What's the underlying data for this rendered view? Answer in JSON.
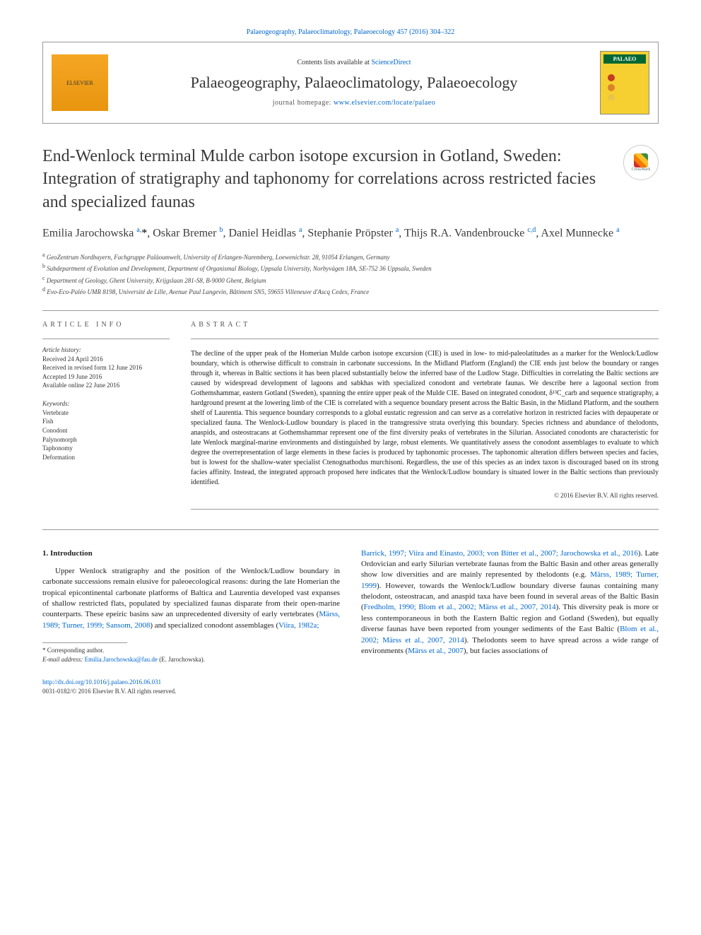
{
  "header": {
    "citation": "Palaeogeography, Palaeoclimatology, Palaeoecology 457 (2016) 304–322",
    "contents_prefix": "Contents lists available at ",
    "contents_link": "ScienceDirect",
    "journal_name": "Palaeogeography, Palaeoclimatology, Palaeoecology",
    "homepage_prefix": "journal homepage: ",
    "homepage_url": "www.elsevier.com/locate/palaeo",
    "elsevier_label": "ELSEVIER",
    "palaeo_cover_label": "PALAEO"
  },
  "crossmark_label": "CrossMark",
  "title": "End-Wenlock terminal Mulde carbon isotope excursion in Gotland, Sweden: Integration of stratigraphy and taphonomy for correlations across restricted facies and specialized faunas",
  "authors_html": "Emilia Jarochowska <sup>a,</sup><span class='asterisk'>*</span>, Oskar Bremer <sup>b</sup>, Daniel Heidlas <sup>a</sup>, Stephanie Pröpster <sup>a</sup>, Thijs R.A. Vandenbroucke <sup>c,d</sup>, Axel Munnecke <sup>a</sup>",
  "affiliations": [
    "a  GeoZentrum Nordbayern, Fachgruppe Paläoumwelt, University of Erlangen-Nuremberg, Loewenichstr. 28, 91054 Erlangen, Germany",
    "b  Subdepartment of Evolution and Development, Department of Organismal Biology, Uppsala University, Norbyvägen 18A, SE-752 36 Uppsala, Sweden",
    "c  Department of Geology, Ghent University, Krijgslaan 281-S8, B-9000 Ghent, Belgium",
    "d  Evo-Eco-Paléo UMR 8198, Université de Lille, Avenue Paul Langevin, Bâtiment SN5, 59655 Villeneuve d'Ascq Cedex, France"
  ],
  "article_info_label": "ARTICLE INFO",
  "abstract_label": "ABSTRACT",
  "history": {
    "label": "Article history:",
    "items": [
      "Received 24 April 2016",
      "Received in revised form 12 June 2016",
      "Accepted 19 June 2016",
      "Available online 22 June 2016"
    ]
  },
  "keywords": {
    "label": "Keywords:",
    "items": [
      "Vertebrate",
      "Fish",
      "Conodont",
      "Palynomorph",
      "Taphonomy",
      "Deformation"
    ]
  },
  "abstract_text": "The decline of the upper peak of the Homerian Mulde carbon isotope excursion (CIE) is used in low- to mid-paleolatitudes as a marker for the Wenlock/Ludlow boundary, which is otherwise difficult to constrain in carbonate successions. In the Midland Platform (England) the CIE ends just below the boundary or ranges through it, whereas in Baltic sections it has been placed substantially below the inferred base of the Ludlow Stage. Difficulties in correlating the Baltic sections are caused by widespread development of lagoons and sabkhas with specialized conodont and vertebrate faunas. We describe here a lagoonal section from Gothemshammar, eastern Gotland (Sweden), spanning the entire upper peak of the Mulde CIE. Based on integrated conodont, δ¹³C_carb and sequence stratigraphy, a hardground present at the lowering limb of the CIE is correlated with a sequence boundary present across the Baltic Basin, in the Midland Platform, and the southern shelf of Laurentia. This sequence boundary corresponds to a global eustatic regression and can serve as a correlative horizon in restricted facies with depauperate or specialized fauna. The Wenlock-Ludlow boundary is placed in the transgressive strata overlying this boundary. Species richness and abundance of thelodonts, anaspids, and osteostracans at Gothemshammar represent one of the first diversity peaks of vertebrates in the Silurian. Associated conodonts are characteristic for late Wenlock marginal-marine environments and distinguished by large, robust elements. We quantitatively assess the conodont assemblages to evaluate to which degree the overrepresentation of large elements in these facies is produced by taphonomic processes. The taphonomic alteration differs between species and facies, but is lowest for the shallow-water specialist Ctenognathodus murchisoni. Regardless, the use of this species as an index taxon is discouraged based on its strong facies affinity. Instead, the integrated approach proposed here indicates that the Wenlock/Ludlow boundary is situated lower in the Baltic sections than previously identified.",
  "copyright": "© 2016 Elsevier B.V. All rights reserved.",
  "intro_heading": "1. Introduction",
  "intro_col1": "Upper Wenlock stratigraphy and the position of the Wenlock/Ludlow boundary in carbonate successions remain elusive for paleoecological reasons: during the late Homerian the tropical epicontinental carbonate platforms of Baltica and Laurentia developed vast expanses of shallow restricted flats, populated by specialized faunas disparate from their open-marine counterparts. These epeiric basins saw an unprecedented diversity of early vertebrates (<span class='ref-link'>Märss, 1989; Turner, 1999; Sansom, 2008</span>) and specialized conodont assemblages (<span class='ref-link'>Viira, 1982a;</span>",
  "intro_col2": "<span class='ref-link'>Barrick, 1997; Viira and Einasto, 2003; von Bitter et al., 2007; Jarochowska et al., 2016</span>). Late Ordovician and early Silurian vertebrate faunas from the Baltic Basin and other areas generally show low diversities and are mainly represented by thelodonts (e.g. <span class='ref-link'>Märss, 1989; Turner, 1999</span>). However, towards the Wenlock/Ludlow boundary diverse faunas containing many thelodont, osteostracan, and anaspid taxa have been found in several areas of the Baltic Basin (<span class='ref-link'>Fredholm, 1990; Blom et al., 2002; Märss et al., 2007, 2014</span>). This diversity peak is more or less contemporaneous in both the Eastern Baltic region and Gotland (Sweden), but equally diverse faunas have been reported from younger sediments of the East Baltic (<span class='ref-link'>Blom et al., 2002; Märss et al., 2007, 2014</span>). Thelodonts seem to have spread across a wide range of environments (<span class='ref-link'>Märss et al., 2007</span>), but facies associations of",
  "footnote": {
    "corresponding": "*  Corresponding author.",
    "email_label": "E-mail address: ",
    "email": "Emilia.Jarochowska@fau.de",
    "email_name": " (E. Jarochowska)."
  },
  "footer": {
    "doi": "http://dx.doi.org/10.1016/j.palaeo.2016.06.031",
    "issn_line": "0031-0182/© 2016 Elsevier B.V. All rights reserved."
  },
  "palette": {
    "link_color": "#0066cc",
    "cover_bg": "#f5d030",
    "cover_title_bg": "#006633",
    "dot_colors": [
      "#c23b22",
      "#d9822b",
      "#e8c547"
    ]
  }
}
